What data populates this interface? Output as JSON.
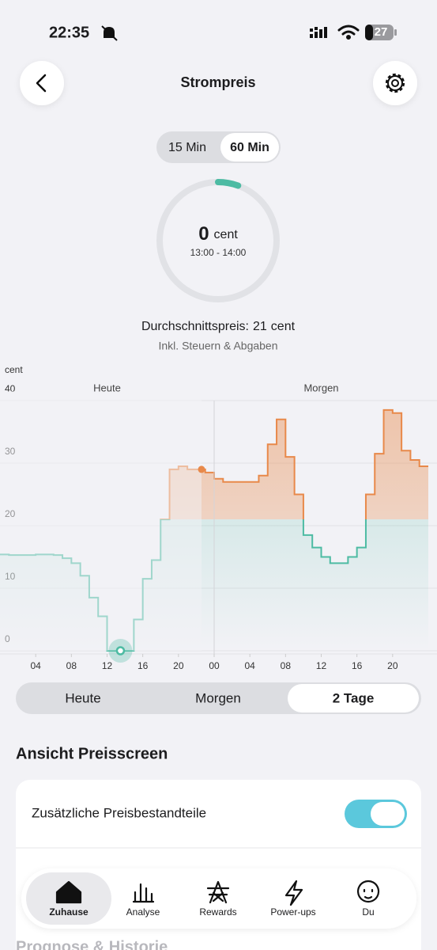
{
  "status_bar": {
    "time": "22:35",
    "battery": "27"
  },
  "header": {
    "title": "Strompreis"
  },
  "interval_toggle": {
    "options": [
      "15 Min",
      "60 Min"
    ],
    "selected_index": 1
  },
  "gauge": {
    "value": 0,
    "unit": "cent",
    "time_range": "13:00 - 14:00"
  },
  "average": {
    "label": "Durchschnittspreis:",
    "value": 21,
    "unit": "cent",
    "note": "Inkl. Steuern & Abgaben"
  },
  "chart_data": {
    "type": "step-line",
    "y_label": "cent",
    "days": [
      "Heute",
      "Morgen"
    ],
    "x": [
      0,
      1,
      2,
      3,
      4,
      5,
      6,
      7,
      8,
      9,
      10,
      11,
      12,
      13,
      14,
      15,
      16,
      17,
      18,
      19,
      20,
      21,
      22,
      23,
      24,
      25,
      26,
      27,
      28,
      29,
      30,
      31,
      32,
      33,
      34,
      35,
      36,
      37,
      38,
      39,
      40,
      41,
      42,
      43,
      44,
      45,
      46,
      47
    ],
    "values": [
      15.4,
      15.3,
      15.3,
      15.3,
      15.4,
      15.4,
      15.3,
      14.8,
      14,
      12,
      8.5,
      5.5,
      0,
      0,
      0,
      5,
      11.5,
      14.5,
      21,
      29,
      29.5,
      29,
      29,
      28.5,
      27.5,
      27,
      27,
      27,
      27,
      28,
      33,
      37,
      31,
      25,
      18.5,
      16.5,
      15,
      14,
      14,
      15,
      16.5,
      25,
      31.5,
      38.5,
      38,
      32,
      30.5,
      29.5
    ],
    "xlim": [
      0,
      48
    ],
    "ylim": [
      0,
      40
    ],
    "yticks": [
      0,
      10,
      20,
      30,
      40
    ],
    "xticks": [
      {
        "value": 4,
        "label": "04"
      },
      {
        "value": 8,
        "label": "08"
      },
      12,
      16,
      20,
      {
        "value": 24,
        "label": "00"
      },
      {
        "value": 28,
        "label": "04"
      },
      {
        "value": 32,
        "label": "08"
      },
      {
        "value": 36,
        "label": "12"
      },
      {
        "value": 40,
        "label": "16"
      },
      {
        "value": 44,
        "label": "20"
      }
    ],
    "grid": true,
    "colors": {
      "low": "#4dbba3",
      "high": "#e8894a"
    }
  },
  "view_switch": {
    "options": [
      "Heute",
      "Morgen",
      "2 Tage"
    ],
    "selected_index": 2
  },
  "section": {
    "title": "Ansicht Preisscreen"
  },
  "settings": {
    "rows": [
      {
        "label": "Zusätzliche Preisbestandteile",
        "enabled": true
      }
    ]
  },
  "next_section": {
    "title": "Prognose & Historie"
  },
  "tab_bar": {
    "tabs": [
      "Zuhause",
      "Analyse",
      "Rewards",
      "Power-ups",
      "Du"
    ],
    "selected_index": 0
  }
}
